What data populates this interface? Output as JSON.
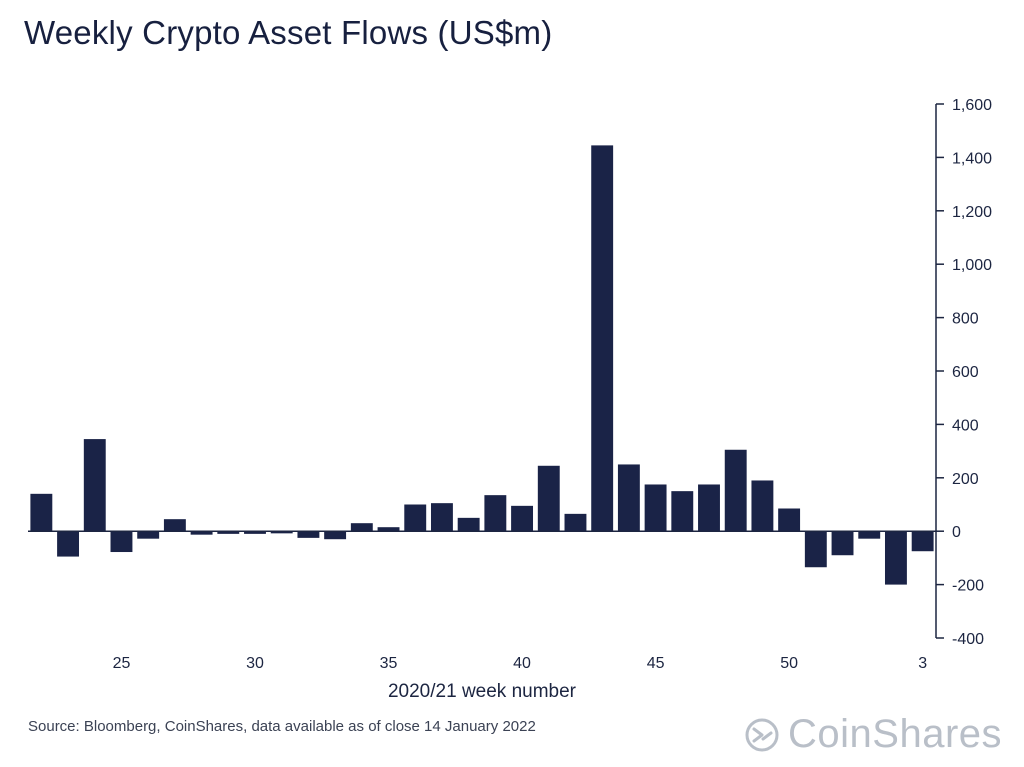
{
  "title": "Weekly Crypto Asset Flows (US$m)",
  "source": "Source: Bloomberg, CoinShares, data available as of close 14 January 2022",
  "logo": {
    "text": "CoinShares",
    "icon": "coinshares-logo-icon"
  },
  "colors": {
    "bar": "#1a2347",
    "axis": "#1c2541",
    "logo": "#b9bfc8"
  },
  "chart_data": {
    "type": "bar",
    "title": "Weekly Crypto Asset Flows (US$m)",
    "xlabel": "2020/21 week number",
    "ylabel": "",
    "ylim": [
      -400,
      1600
    ],
    "y_axis_side": "right",
    "yticks": [
      1600,
      1400,
      1200,
      1000,
      800,
      600,
      400,
      200,
      0,
      -200,
      -400
    ],
    "ytick_labels": [
      "1,600",
      "1,400",
      "1,200",
      "1,000",
      "800",
      "600",
      "400",
      "200",
      "0",
      "-200",
      "-400"
    ],
    "xtick_labels": [
      {
        "label": "25",
        "index": 3
      },
      {
        "label": "30",
        "index": 8
      },
      {
        "label": "35",
        "index": 13
      },
      {
        "label": "40",
        "index": 18
      },
      {
        "label": "45",
        "index": 23
      },
      {
        "label": "50",
        "index": 28
      },
      {
        "label": "3",
        "index": 33
      }
    ],
    "values": [
      140,
      -95,
      345,
      -78,
      -28,
      45,
      -13,
      -10,
      -10,
      -8,
      -25,
      -30,
      30,
      15,
      100,
      105,
      50,
      135,
      95,
      245,
      65,
      1445,
      250,
      175,
      150,
      175,
      305,
      190,
      85,
      -135,
      -90,
      -28,
      -200,
      -75
    ],
    "grid": false
  }
}
